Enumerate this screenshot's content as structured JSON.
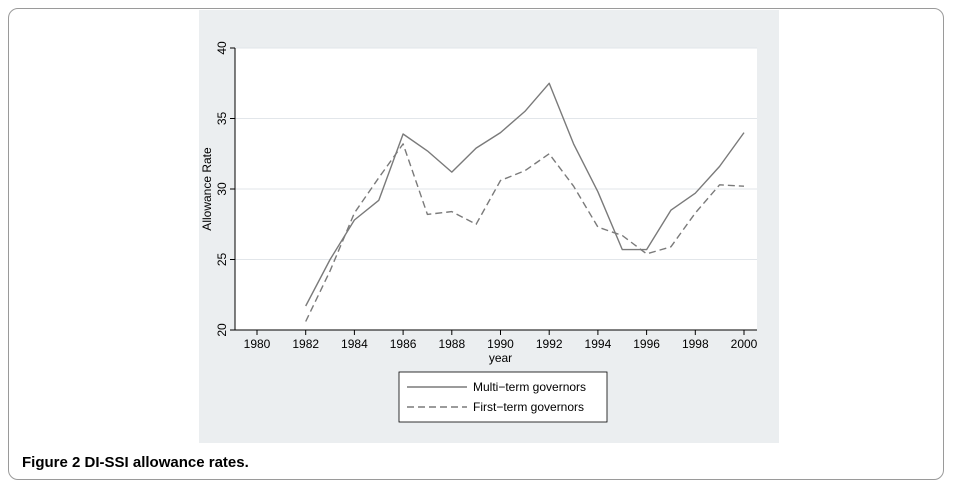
{
  "caption": {
    "figure_label": "Figure 2",
    "text": "DI-SSI allowance rates."
  },
  "chart_data": {
    "type": "line",
    "title": "",
    "xlabel": "year",
    "ylabel": "Allowance Rate",
    "xlim": [
      1980,
      2000
    ],
    "ylim": [
      20,
      40
    ],
    "x_ticks": [
      "1980",
      "1982",
      "1984",
      "1986",
      "1988",
      "1990",
      "1992",
      "1994",
      "1996",
      "1998",
      "2000"
    ],
    "y_ticks": [
      "20",
      "25",
      "30",
      "35",
      "40"
    ],
    "grid": true,
    "legend_position": "bottom",
    "x": [
      1982,
      1983,
      1984,
      1985,
      1986,
      1987,
      1988,
      1989,
      1990,
      1991,
      1992,
      1993,
      1994,
      1995,
      1996,
      1997,
      1998,
      1999,
      2000
    ],
    "series": [
      {
        "name": "Multi−term governors",
        "style": "solid",
        "color": "#7a7a7a",
        "values": [
          21.7,
          25.0,
          27.8,
          29.2,
          33.9,
          32.7,
          31.2,
          32.9,
          34.0,
          35.5,
          37.5,
          33.2,
          29.8,
          25.7,
          25.7,
          28.5,
          29.7,
          31.6,
          34.0
        ]
      },
      {
        "name": "First−term governors",
        "style": "dashed",
        "color": "#7a7a7a",
        "values": [
          20.6,
          24.2,
          28.3,
          30.8,
          33.2,
          28.2,
          28.4,
          27.5,
          30.6,
          31.3,
          32.5,
          30.2,
          27.3,
          26.7,
          25.4,
          25.9,
          28.3,
          30.3,
          30.2
        ]
      }
    ]
  }
}
